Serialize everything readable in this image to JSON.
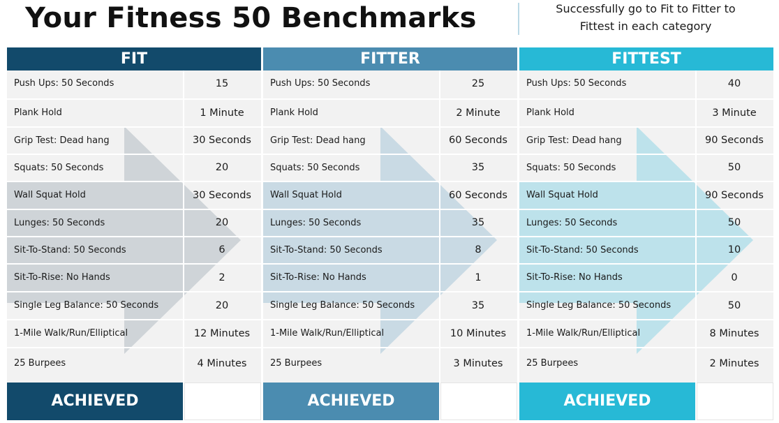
{
  "title": "Your Fitness 50 Benchmarks",
  "subtitle_lines": [
    "Successfully go to Fit to Fitter to",
    "Fittest in each category"
  ],
  "exercises": [
    "Push Ups: 50 Seconds",
    "Plank Hold",
    "Grip Test: Dead hang",
    "Squats: 50 Seconds",
    "Wall Squat Hold",
    "Lunges: 50 Seconds",
    "Sit-To-Stand: 50 Seconds",
    "Sit-To-Rise: No Hands",
    "Single Leg Balance: 50 Seconds",
    "1-Mile Walk/Run/Elliptical",
    "25 Burpees"
  ],
  "levels": [
    {
      "name": "FIT",
      "color": "#124a6b",
      "arrow_color": "#c9cfd4",
      "achieved_label": "ACHIEVED",
      "values": [
        "15",
        "1 Minute",
        "30 Seconds",
        "20",
        "30 Seconds",
        "20",
        "6",
        "2",
        "20",
        "12 Minutes",
        "4 Minutes"
      ]
    },
    {
      "name": "FITTER",
      "color": "#4b8cb0",
      "arrow_color": "#c2d6e2",
      "achieved_label": "ACHIEVED",
      "values": [
        "25",
        "2 Minute",
        "60 Seconds",
        "35",
        "60 Seconds",
        "35",
        "8",
        "1",
        "35",
        "10 Minutes",
        "3 Minutes"
      ]
    },
    {
      "name": "FITTEST",
      "color": "#27b9d6",
      "arrow_color": "#b4dfea",
      "achieved_label": "ACHIEVED",
      "values": [
        "40",
        "3 Minute",
        "90 Seconds",
        "50",
        "90 Seconds",
        "50",
        "10",
        "0",
        "50",
        "8  Minutes",
        "2 Minutes"
      ]
    }
  ]
}
